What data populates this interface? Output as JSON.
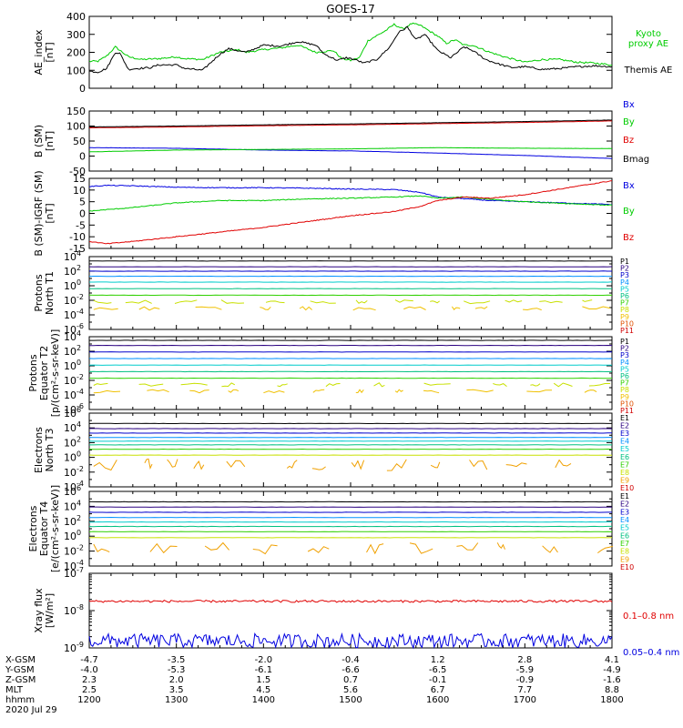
{
  "title": "GOES-17",
  "colors": {
    "black": "#000000",
    "green": "#00cc00",
    "red": "#e00000",
    "blue": "#0000e0",
    "prot": [
      "#000000",
      "#2a0080",
      "#0000cc",
      "#0090ff",
      "#00cccc",
      "#00c080",
      "#30d000",
      "#c8e000",
      "#f0c000",
      "#e05000",
      "#d00000"
    ],
    "elec": [
      "#000000",
      "#2a0080",
      "#0000cc",
      "#0090ff",
      "#00cccc",
      "#00c080",
      "#30d000",
      "#c8e000",
      "#f0a000",
      "#d00000"
    ]
  },
  "chart_data": [
    {
      "id": "ae",
      "type": "line",
      "ylabel": [
        "AE_index",
        "[nT]"
      ],
      "ylim": [
        0,
        400
      ],
      "yticks": [
        0,
        100,
        200,
        300,
        400
      ],
      "yticklabels": [
        "0",
        "100",
        "200",
        "300",
        "400"
      ],
      "series": [
        {
          "name": "Kyoto proxy AE",
          "legend": [
            "Kyoto",
            "proxy AE"
          ],
          "color": "green",
          "x": [
            12.0,
            12.1,
            12.2,
            12.3,
            12.45,
            12.6,
            12.8,
            13.0,
            13.1,
            13.3,
            13.5,
            13.7,
            13.8,
            14.0,
            14.2,
            14.4,
            14.6,
            14.8,
            14.9,
            15.0,
            15.1,
            15.2,
            15.4,
            15.5,
            15.6,
            15.7,
            15.8,
            15.9,
            16.0,
            16.1,
            16.2,
            16.3,
            16.4,
            16.6,
            16.8,
            17.0,
            17.2,
            17.4,
            17.6,
            17.8,
            18.0
          ],
          "y": [
            150,
            150,
            180,
            230,
            175,
            160,
            165,
            175,
            165,
            160,
            200,
            215,
            200,
            215,
            225,
            240,
            200,
            210,
            165,
            155,
            170,
            265,
            320,
            355,
            330,
            360,
            350,
            320,
            290,
            250,
            270,
            240,
            240,
            200,
            170,
            145,
            160,
            160,
            145,
            140,
            130
          ]
        },
        {
          "name": "Themis AE",
          "legend": [
            "Themis AE"
          ],
          "color": "black",
          "x": [
            12.0,
            12.1,
            12.2,
            12.3,
            12.35,
            12.45,
            12.55,
            12.7,
            12.8,
            13.0,
            13.1,
            13.3,
            13.5,
            13.6,
            13.8,
            14.0,
            14.2,
            14.4,
            14.6,
            14.7,
            14.85,
            14.95,
            15.05,
            15.15,
            15.3,
            15.45,
            15.55,
            15.65,
            15.75,
            15.85,
            16.0,
            16.15,
            16.3,
            16.4,
            16.55,
            16.7,
            16.85,
            17.0,
            17.2,
            17.4,
            17.6,
            17.8,
            18.0
          ],
          "y": [
            95,
            90,
            110,
            200,
            195,
            105,
            110,
            115,
            130,
            130,
            110,
            100,
            190,
            220,
            200,
            240,
            235,
            260,
            240,
            190,
            155,
            170,
            160,
            140,
            160,
            230,
            310,
            340,
            270,
            300,
            210,
            170,
            230,
            210,
            160,
            135,
            115,
            120,
            105,
            110,
            120,
            125,
            120
          ]
        }
      ]
    },
    {
      "id": "bsm",
      "type": "line",
      "ylabel": [
        "B (SM)",
        "[nT]"
      ],
      "ylim": [
        -50,
        150
      ],
      "yticks": [
        -50,
        0,
        50,
        100,
        150
      ],
      "yticklabels": [
        "-50",
        "0",
        "50",
        "100",
        "150"
      ],
      "series": [
        {
          "name": "Bx",
          "legend": [
            "Bx"
          ],
          "color": "blue",
          "x": [
            12,
            13,
            14,
            15,
            16,
            17,
            18
          ],
          "y": [
            28,
            26,
            20,
            17,
            10,
            2,
            -8
          ]
        },
        {
          "name": "By",
          "legend": [
            "By"
          ],
          "color": "green",
          "x": [
            12,
            13,
            14,
            15,
            16,
            17,
            18
          ],
          "y": [
            14,
            20,
            22,
            24,
            28,
            26,
            25
          ]
        },
        {
          "name": "Bz",
          "legend": [
            "Bz"
          ],
          "color": "red",
          "x": [
            12,
            13,
            14,
            15,
            16,
            17,
            18
          ],
          "y": [
            94,
            97,
            101,
            104,
            108,
            112,
            117
          ]
        },
        {
          "name": "Bmag",
          "legend": [
            "Bmag"
          ],
          "color": "black",
          "x": [
            12,
            13,
            14,
            15,
            16,
            17,
            18
          ],
          "y": [
            97,
            100,
            104,
            107,
            111,
            115,
            120
          ]
        }
      ]
    },
    {
      "id": "bigrf",
      "type": "line",
      "ylabel": [
        "B (SM)-IGRF (SM)",
        "[nT]"
      ],
      "ylim": [
        -15,
        15
      ],
      "yticks": [
        -15,
        -10,
        -5,
        0,
        5,
        10,
        15
      ],
      "yticklabels": [
        "-15",
        "-10",
        "-5",
        "0",
        "5",
        "10",
        "15"
      ],
      "series": [
        {
          "name": "Bx",
          "legend": [
            "Bx"
          ],
          "color": "blue",
          "x": [
            12.0,
            12.2,
            12.5,
            13.0,
            13.5,
            14.0,
            14.5,
            15.0,
            15.5,
            15.8,
            16.0,
            16.3,
            16.6,
            17.0,
            17.5,
            18.0
          ],
          "y": [
            11.5,
            12,
            11.8,
            11.2,
            11,
            11,
            10.8,
            10.4,
            10.2,
            9,
            7,
            6.3,
            5.5,
            5,
            4.4,
            3.8
          ]
        },
        {
          "name": "By",
          "legend": [
            "By"
          ],
          "color": "green",
          "x": [
            12.0,
            12.5,
            13.0,
            13.5,
            14.0,
            14.5,
            15.0,
            15.5,
            15.8,
            16.0,
            16.3,
            16.6,
            17.0,
            17.5,
            18.0
          ],
          "y": [
            1,
            2.5,
            4.5,
            5.5,
            5.5,
            6.2,
            6.5,
            7,
            7.5,
            6.5,
            7,
            6,
            5,
            4.2,
            3.5
          ]
        },
        {
          "name": "Bz",
          "legend": [
            "Bz"
          ],
          "color": "red",
          "x": [
            12.0,
            12.2,
            12.5,
            13.0,
            13.5,
            14.0,
            14.5,
            15.0,
            15.5,
            15.8,
            16.0,
            16.3,
            16.6,
            17.0,
            17.5,
            18.0
          ],
          "y": [
            -12,
            -13,
            -12,
            -10,
            -8,
            -6,
            -3.5,
            -1,
            0.8,
            3,
            5.5,
            7,
            6.5,
            8,
            11,
            14
          ]
        }
      ]
    },
    {
      "id": "pn",
      "type": "line",
      "log": true,
      "ylabel": [
        "Protons",
        "North T1"
      ],
      "ylim_exp": [
        -6,
        4
      ],
      "yticks_exp": [
        -6,
        -4,
        -2,
        0,
        2,
        4
      ],
      "yticklabels": [
        "10",
        "10",
        "10",
        "10",
        "10",
        "10"
      ],
      "ytickexps": [
        "-6",
        "-4",
        "-2",
        "0",
        "2",
        "4"
      ],
      "series_names": [
        "P1",
        "P2",
        "P3",
        "P4",
        "P5",
        "P6",
        "P7",
        "P8",
        "P9",
        "P10",
        "P11"
      ],
      "log_levels": [
        3.4,
        2.6,
        2.0,
        1.3,
        0.5,
        -0.4,
        -1.3,
        -2.2,
        -3.1,
        null,
        null
      ]
    },
    {
      "id": "pe",
      "type": "line",
      "log": true,
      "ylabel": [
        "Protons",
        "Equator T2",
        "[p/(cm²-s-sr-keV)]"
      ],
      "ylim_exp": [
        -6,
        4
      ],
      "yticks_exp": [
        -6,
        -4,
        -2,
        0,
        2,
        4
      ],
      "yticklabels": [
        "10",
        "10",
        "10",
        "10",
        "10",
        "10"
      ],
      "ytickexps": [
        "-6",
        "-4",
        "-2",
        "0",
        "2",
        "4"
      ],
      "series_names": [
        "P1",
        "P2",
        "P3",
        "P4",
        "P5",
        "P6",
        "P7",
        "P8",
        "P9",
        "P10",
        "P11"
      ],
      "log_levels": [
        3.5,
        2.8,
        1.9,
        1.0,
        0.1,
        -0.8,
        -1.7,
        -2.6,
        -3.5,
        null,
        null
      ]
    },
    {
      "id": "en",
      "type": "line",
      "log": true,
      "ylabel": [
        "Electrons",
        "North T3"
      ],
      "ylim_exp": [
        -4,
        6
      ],
      "yticks_exp": [
        -4,
        -2,
        0,
        2,
        4,
        6
      ],
      "yticklabels": [
        "10",
        "10",
        "10",
        "10",
        "10",
        "10"
      ],
      "ytickexps": [
        "-4",
        "-2",
        "0",
        "2",
        "4",
        "6"
      ],
      "series_names": [
        "E1",
        "E2",
        "E3",
        "E4",
        "E5",
        "E6",
        "E7",
        "E8",
        "E9",
        "E10"
      ],
      "log_levels": [
        4.6,
        3.9,
        3.3,
        2.7,
        2.2,
        1.7,
        1.1,
        0.3,
        -1.0,
        null
      ]
    },
    {
      "id": "ee",
      "type": "line",
      "log": true,
      "ylabel": [
        "Electrons",
        "Equator T4",
        "[e/(cm²-s-sr-keV)]"
      ],
      "ylim_exp": [
        -4,
        6
      ],
      "yticks_exp": [
        -4,
        -2,
        0,
        2,
        4,
        6
      ],
      "yticklabels": [
        "10",
        "10",
        "10",
        "10",
        "10",
        "10"
      ],
      "ytickexps": [
        "-4",
        "-2",
        "0",
        "2",
        "4",
        "6"
      ],
      "series_names": [
        "E1",
        "E2",
        "E3",
        "E4",
        "E5",
        "E6",
        "E7",
        "E8",
        "E9",
        "E10"
      ],
      "log_levels": [
        4.6,
        3.9,
        3.2,
        2.5,
        1.9,
        1.3,
        0.6,
        -0.2,
        -1.6,
        null
      ]
    },
    {
      "id": "xr",
      "type": "line",
      "log": true,
      "ylabel": [
        "Xray flux",
        "[W/m²]"
      ],
      "ylim_exp": [
        -9,
        -7
      ],
      "yticks_exp": [
        -9,
        -8,
        -7
      ],
      "yticklabels": [
        "10",
        "10",
        "10"
      ],
      "ytickexps": [
        "-9",
        "-8",
        "-7"
      ],
      "series": [
        {
          "name": "0.1-0.8 nm",
          "legend": [
            "0.1–0.8 nm"
          ],
          "color": "red",
          "base_log": -7.75
        },
        {
          "name": "0.05-0.4 nm",
          "legend": [
            "0.05–0.4 nm"
          ],
          "color": "blue",
          "base_log": -8.85
        }
      ]
    }
  ],
  "xaxis": {
    "hhmm": [
      "1200",
      "1300",
      "1400",
      "1500",
      "1600",
      "1700",
      "1800"
    ],
    "rows": [
      {
        "label": "X-GSM",
        "values": [
          "-4.7",
          "-3.5",
          "-2.0",
          "-0.4",
          "1.2",
          "2.8",
          "4.1"
        ]
      },
      {
        "label": "Y-GSM",
        "values": [
          "-4.0",
          "-5.3",
          "-6.1",
          "-6.6",
          "-6.5",
          "-5.9",
          "-4.9"
        ]
      },
      {
        "label": "Z-GSM",
        "values": [
          "2.3",
          "2.0",
          "1.5",
          "0.7",
          "-0.1",
          "-0.9",
          "-1.6"
        ]
      },
      {
        "label": "MLT",
        "values": [
          "2.5",
          "3.5",
          "4.5",
          "5.6",
          "6.7",
          "7.7",
          "8.8"
        ]
      },
      {
        "label": "hhmm",
        "values": [
          "1200",
          "1300",
          "1400",
          "1500",
          "1600",
          "1700",
          "1800"
        ]
      }
    ],
    "date": "2020 Jul 29"
  }
}
